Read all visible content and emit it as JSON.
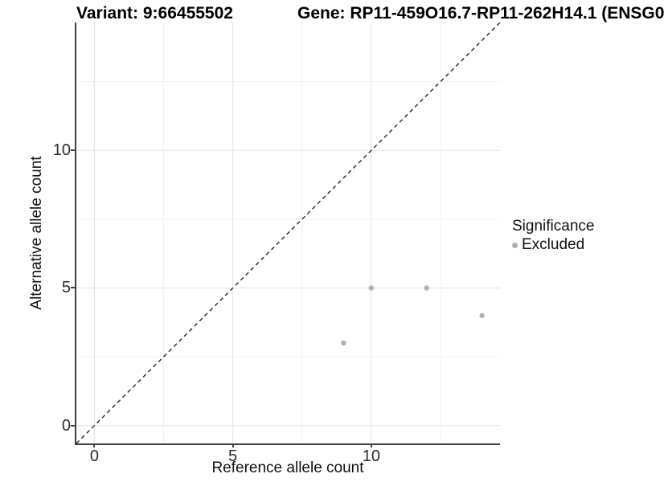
{
  "figure": {
    "title_left": "Variant: 9:66455502",
    "title_right": "Gene: RP11-459O16.7-RP11-262H14.1 (ENSG0"
  },
  "chart_data": {
    "type": "scatter",
    "title": "Variant: 9:66455502   Gene: RP11-459O16.7-RP11-262H14.1 (ENSG0… [clipped at image edge]",
    "xlabel": "Reference allele count",
    "ylabel": "Alternative allele count",
    "xlim": [
      -0.65,
      14.65
    ],
    "ylim": [
      -0.65,
      14.65
    ],
    "x_ticks": [
      0,
      5,
      10
    ],
    "y_ticks": [
      0,
      5,
      10
    ],
    "x_minor_ticks": [
      2.5,
      7.5,
      12.5
    ],
    "y_minor_ticks": [
      2.5,
      7.5,
      12.5
    ],
    "grid": true,
    "legend_position": "right",
    "series": [
      {
        "name": "Excluded",
        "color": "#b0b0b0",
        "points": [
          [
            9,
            3
          ],
          [
            10,
            5
          ],
          [
            12,
            5
          ],
          [
            14,
            4
          ]
        ]
      }
    ],
    "reference_line": {
      "kind": "abline",
      "slope": 1,
      "intercept": 0,
      "style": "dashed",
      "color": "#262626"
    },
    "legend": {
      "title": "Significance",
      "entries": [
        {
          "label": "Excluded",
          "color": "#b0b0b0"
        }
      ]
    }
  },
  "colors": {
    "background": "#ffffff",
    "axis_line": "#404040",
    "grid_major": "#e6e6e6",
    "grid_minor": "#f2f2f2",
    "point": "#b0b0b0",
    "text": "#111111"
  }
}
